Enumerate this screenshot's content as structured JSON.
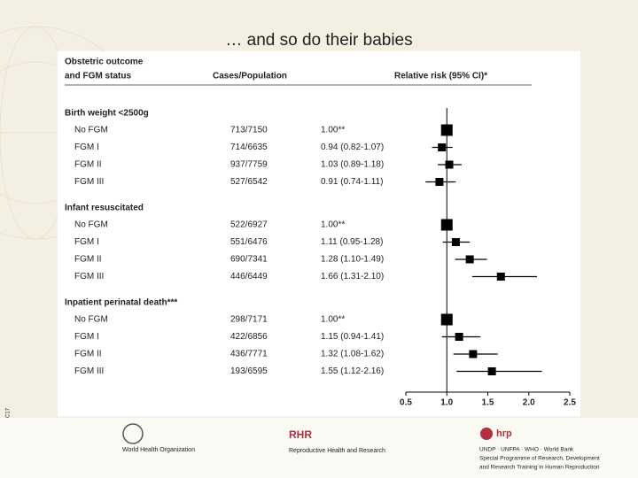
{
  "slide_title": "… and so do their babies",
  "side_label": "06_FGM_Slides_05C17",
  "footer": {
    "who": "World Health Organization",
    "rhr_logo": "RHR",
    "rhr": "Reproductive Health and Research",
    "hrp_logo": "hrp",
    "hrp_lines": [
      "UNDP · UNFPA · WHO · World Bank",
      "Special Programme of Research, Development",
      "and Research Training in Human Reproduction"
    ]
  },
  "chart_data": {
    "type": "forest",
    "header": [
      "Obstetric outcome",
      "and FGM status"
    ],
    "col_cases": "Cases/Population",
    "col_rr": "Relative risk (95% CI)*",
    "reference": 1,
    "xlim": [
      0.5,
      2.5
    ],
    "xticks": [
      0.5,
      {
        "value": 1,
        "label": "1.0"
      },
      1.5,
      {
        "value": 2,
        "label": "2.0"
      },
      2.5
    ],
    "color": "#000000",
    "groups": [
      {
        "name": "Birth weight <2500g",
        "rows": [
          {
            "label": "No FGM",
            "cases": "713/7150",
            "rr_label": "1.00**",
            "value": 1.0
          },
          {
            "label": "FGM I",
            "cases": "714/6635",
            "rr_label": "0.94 (0.82-1.07)",
            "value": 0.94,
            "lo": 0.82,
            "hi": 1.07
          },
          {
            "label": "FGM II",
            "cases": "937/7759",
            "rr_label": "1.03 (0.89-1.18)",
            "value": 1.03,
            "lo": 0.89,
            "hi": 1.18
          },
          {
            "label": "FGM III",
            "cases": "527/6542",
            "rr_label": "0.91 (0.74-1.11)",
            "value": 0.91,
            "lo": 0.74,
            "hi": 1.11
          }
        ]
      },
      {
        "name": "Infant resuscitated",
        "rows": [
          {
            "label": "No FGM",
            "cases": "522/6927",
            "rr_label": "1.00**",
            "value": 1.0
          },
          {
            "label": "FGM I",
            "cases": "551/6476",
            "rr_label": "1.11 (0.95-1.28)",
            "value": 1.11,
            "lo": 0.95,
            "hi": 1.28
          },
          {
            "label": "FGM II",
            "cases": "690/7341",
            "rr_label": "1.28 (1.10-1.49)",
            "value": 1.28,
            "lo": 1.1,
            "hi": 1.49
          },
          {
            "label": "FGM III",
            "cases": "446/6449",
            "rr_label": "1.66 (1.31-2.10)",
            "value": 1.66,
            "lo": 1.31,
            "hi": 2.1
          }
        ]
      },
      {
        "name": "Inpatient perinatal death***",
        "rows": [
          {
            "label": "No FGM",
            "cases": "298/7171",
            "rr_label": "1.00**",
            "value": 1.0
          },
          {
            "label": "FGM I",
            "cases": "422/6856",
            "rr_label": "1.15 (0.94-1.41)",
            "value": 1.15,
            "lo": 0.94,
            "hi": 1.41
          },
          {
            "label": "FGM II",
            "cases": "436/7771",
            "rr_label": "1.32 (1.08-1.62)",
            "value": 1.32,
            "lo": 1.08,
            "hi": 1.62
          },
          {
            "label": "FGM III",
            "cases": "193/6595",
            "rr_label": "1.55 (1.12-2.16)",
            "value": 1.55,
            "lo": 1.12,
            "hi": 2.16
          }
        ]
      }
    ]
  }
}
